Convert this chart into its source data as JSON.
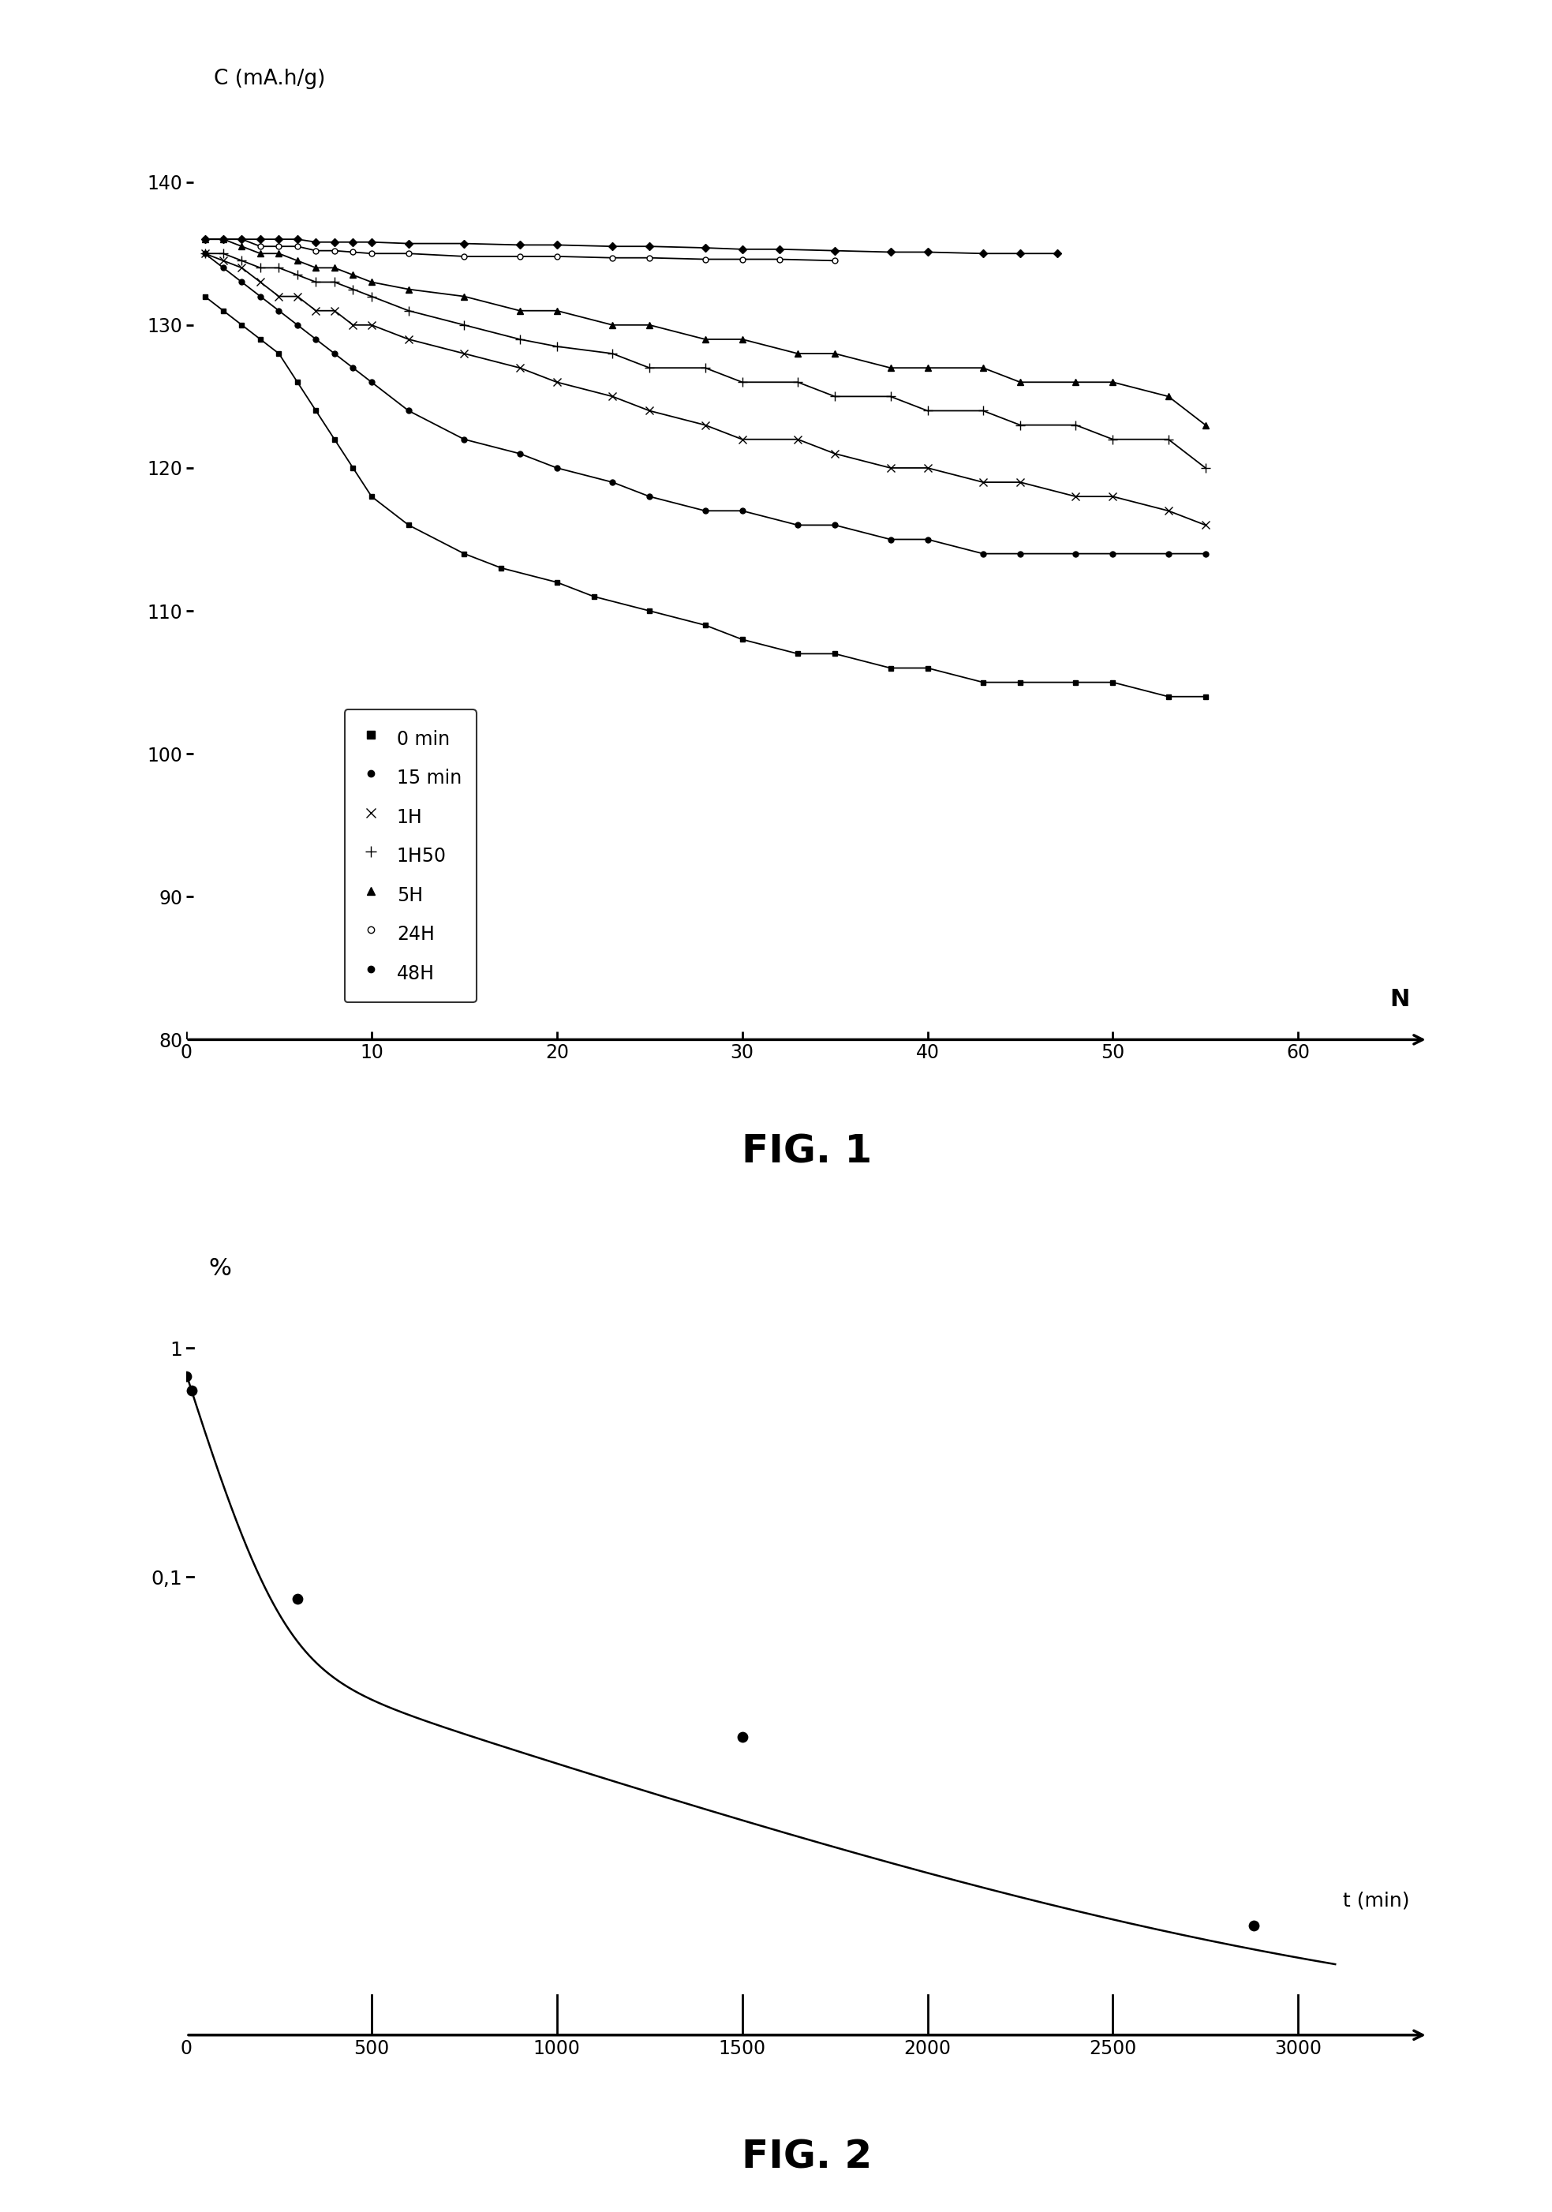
{
  "fig1": {
    "title": "FIG. 1",
    "ylabel": "C (mA.h/g)",
    "xlabel": "N",
    "xlim": [
      0,
      67
    ],
    "ylim": [
      80,
      145
    ],
    "yticks": [
      80,
      90,
      100,
      110,
      120,
      130,
      140
    ],
    "xticks": [
      0,
      10,
      20,
      30,
      40,
      50,
      60
    ],
    "s0_x": [
      1,
      2,
      3,
      4,
      5,
      6,
      7,
      8,
      9,
      10,
      12,
      15,
      17,
      20,
      22,
      25,
      28,
      30,
      33,
      35,
      38,
      40,
      43,
      45,
      48,
      50,
      53,
      55
    ],
    "s0_y": [
      132,
      131,
      130,
      129,
      128,
      126,
      124,
      122,
      120,
      118,
      116,
      114,
      113,
      112,
      111,
      110,
      109,
      108,
      107,
      107,
      106,
      106,
      105,
      105,
      105,
      105,
      104,
      104
    ],
    "s15_x": [
      1,
      2,
      3,
      4,
      5,
      6,
      7,
      8,
      9,
      10,
      12,
      15,
      18,
      20,
      23,
      25,
      28,
      30,
      33,
      35,
      38,
      40,
      43,
      45,
      48,
      50,
      53,
      55
    ],
    "s15_y": [
      135,
      134,
      133,
      132,
      131,
      130,
      129,
      128,
      127,
      126,
      124,
      122,
      121,
      120,
      119,
      118,
      117,
      117,
      116,
      116,
      115,
      115,
      114,
      114,
      114,
      114,
      114,
      114
    ],
    "s1h_x": [
      1,
      2,
      3,
      4,
      5,
      6,
      7,
      8,
      9,
      10,
      12,
      15,
      18,
      20,
      23,
      25,
      28,
      30,
      33,
      35,
      38,
      40,
      43,
      45,
      48,
      50,
      53,
      55
    ],
    "s1h_y": [
      135,
      134.5,
      134,
      133,
      132,
      132,
      131,
      131,
      130,
      130,
      129,
      128,
      127,
      126,
      125,
      124,
      123,
      122,
      122,
      121,
      120,
      120,
      119,
      119,
      118,
      118,
      117,
      116
    ],
    "s1h50_x": [
      1,
      2,
      3,
      4,
      5,
      6,
      7,
      8,
      9,
      10,
      12,
      15,
      18,
      20,
      23,
      25,
      28,
      30,
      33,
      35,
      38,
      40,
      43,
      45,
      48,
      50,
      53,
      55
    ],
    "s1h50_y": [
      135,
      135,
      134.5,
      134,
      134,
      133.5,
      133,
      133,
      132.5,
      132,
      131,
      130,
      129,
      128.5,
      128,
      127,
      127,
      126,
      126,
      125,
      125,
      124,
      124,
      123,
      123,
      122,
      122,
      120
    ],
    "s5h_x": [
      1,
      2,
      3,
      4,
      5,
      6,
      7,
      8,
      9,
      10,
      12,
      15,
      18,
      20,
      23,
      25,
      28,
      30,
      33,
      35,
      38,
      40,
      43,
      45,
      48,
      50,
      53,
      55
    ],
    "s5h_y": [
      136,
      136,
      135.5,
      135,
      135,
      134.5,
      134,
      134,
      133.5,
      133,
      132.5,
      132,
      131,
      131,
      130,
      130,
      129,
      129,
      128,
      128,
      127,
      127,
      127,
      126,
      126,
      126,
      125,
      123
    ],
    "s24h_x": [
      1,
      2,
      3,
      4,
      5,
      6,
      7,
      8,
      9,
      10,
      12,
      15,
      18,
      20,
      23,
      25,
      28,
      30,
      32,
      35
    ],
    "s24h_y": [
      136,
      136,
      136,
      135.5,
      135.5,
      135.5,
      135.2,
      135.2,
      135.1,
      135,
      135,
      134.8,
      134.8,
      134.8,
      134.7,
      134.7,
      134.6,
      134.6,
      134.6,
      134.5
    ],
    "s48h_x": [
      1,
      2,
      3,
      4,
      5,
      6,
      7,
      8,
      9,
      10,
      12,
      15,
      18,
      20,
      23,
      25,
      28,
      30,
      32,
      35,
      38,
      40,
      43,
      45,
      47
    ],
    "s48h_y": [
      136,
      136,
      136,
      136,
      136,
      136,
      135.8,
      135.8,
      135.8,
      135.8,
      135.7,
      135.7,
      135.6,
      135.6,
      135.5,
      135.5,
      135.4,
      135.3,
      135.3,
      135.2,
      135.1,
      135.1,
      135.0,
      135.0,
      135.0
    ]
  },
  "fig2": {
    "title": "FIG. 2",
    "ylabel": "%",
    "xlabel": "t (min)",
    "xlim": [
      0,
      3350
    ],
    "xticks": [
      0,
      500,
      1000,
      1500,
      2000,
      2500,
      3000
    ],
    "data_x": [
      0,
      15,
      300,
      1500,
      2880
    ],
    "data_y": [
      0.75,
      0.65,
      0.08,
      0.02,
      0.003
    ]
  }
}
